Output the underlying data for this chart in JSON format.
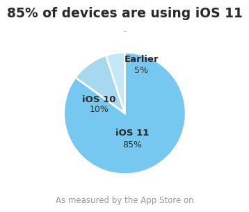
{
  "title": "85% of devices are using iOS 11",
  "subtitle": "·",
  "footer": "As measured by the App Store on",
  "slices": [
    85,
    10,
    5
  ],
  "labels": [
    "iOS 11",
    "iOS 10",
    "Earlier"
  ],
  "pct_labels": [
    "85%",
    "10%",
    "5%"
  ],
  "colors": [
    "#76C8F0",
    "#A8D8F0",
    "#C5E8F8"
  ],
  "startangle": 90,
  "title_fontsize": 13.5,
  "label_fontsize": 9.5,
  "pct_fontsize": 9,
  "footer_fontsize": 8.5,
  "background_color": "#ffffff",
  "label_color": "#2a2a2a",
  "footer_color": "#999999",
  "subtitle_color": "#555555"
}
